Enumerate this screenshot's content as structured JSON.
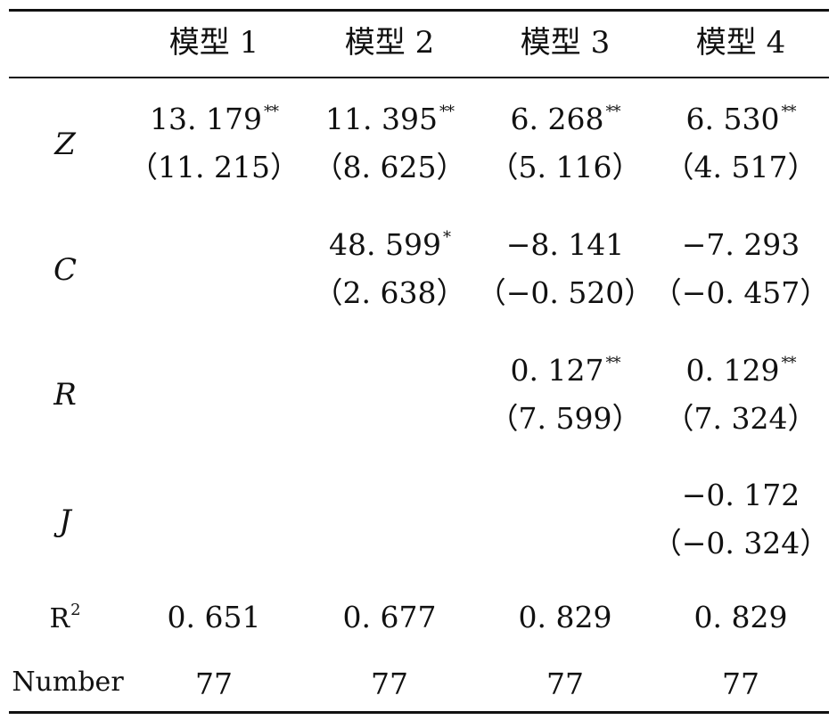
{
  "headers": [
    "模型 1",
    "模型 2",
    "模型 3",
    "模型 4"
  ],
  "rows": [
    {
      "var": "Z",
      "cells": [
        {
          "coef": "13. 179",
          "stars": "**",
          "t": "（11. 215）"
        },
        {
          "coef": "11. 395",
          "stars": "**",
          "t": "（8. 625）"
        },
        {
          "coef": "6. 268",
          "stars": "**",
          "t": "（5. 116）"
        },
        {
          "coef": "6. 530",
          "stars": "**",
          "t": "（4. 517）"
        }
      ]
    },
    {
      "var": "C",
      "cells": [
        {
          "coef": "",
          "stars": "",
          "t": ""
        },
        {
          "coef": "48. 599",
          "stars": "*",
          "t": "（2. 638）"
        },
        {
          "coef": "−8. 141",
          "stars": "",
          "t": "（−0. 520）"
        },
        {
          "coef": "−7. 293",
          "stars": "",
          "t": "（−0. 457）"
        }
      ]
    },
    {
      "var": "R",
      "cells": [
        {
          "coef": "",
          "stars": "",
          "t": ""
        },
        {
          "coef": "",
          "stars": "",
          "t": ""
        },
        {
          "coef": "0. 127",
          "stars": "**",
          "t": "（7. 599）"
        },
        {
          "coef": "0. 129",
          "stars": "**",
          "t": "（7. 324）"
        }
      ]
    },
    {
      "var": "J",
      "cells": [
        {
          "coef": "",
          "stars": "",
          "t": ""
        },
        {
          "coef": "",
          "stars": "",
          "t": ""
        },
        {
          "coef": "",
          "stars": "",
          "t": ""
        },
        {
          "coef": "−0. 172",
          "stars": "",
          "t": "（−0. 324）"
        }
      ]
    }
  ],
  "r2": {
    "label": "R",
    "sup": "2",
    "values": [
      "0. 651",
      "0. 677",
      "0. 829",
      "0. 829"
    ]
  },
  "number": {
    "label": "Number",
    "values": [
      "77",
      "77",
      "77",
      "77"
    ]
  }
}
